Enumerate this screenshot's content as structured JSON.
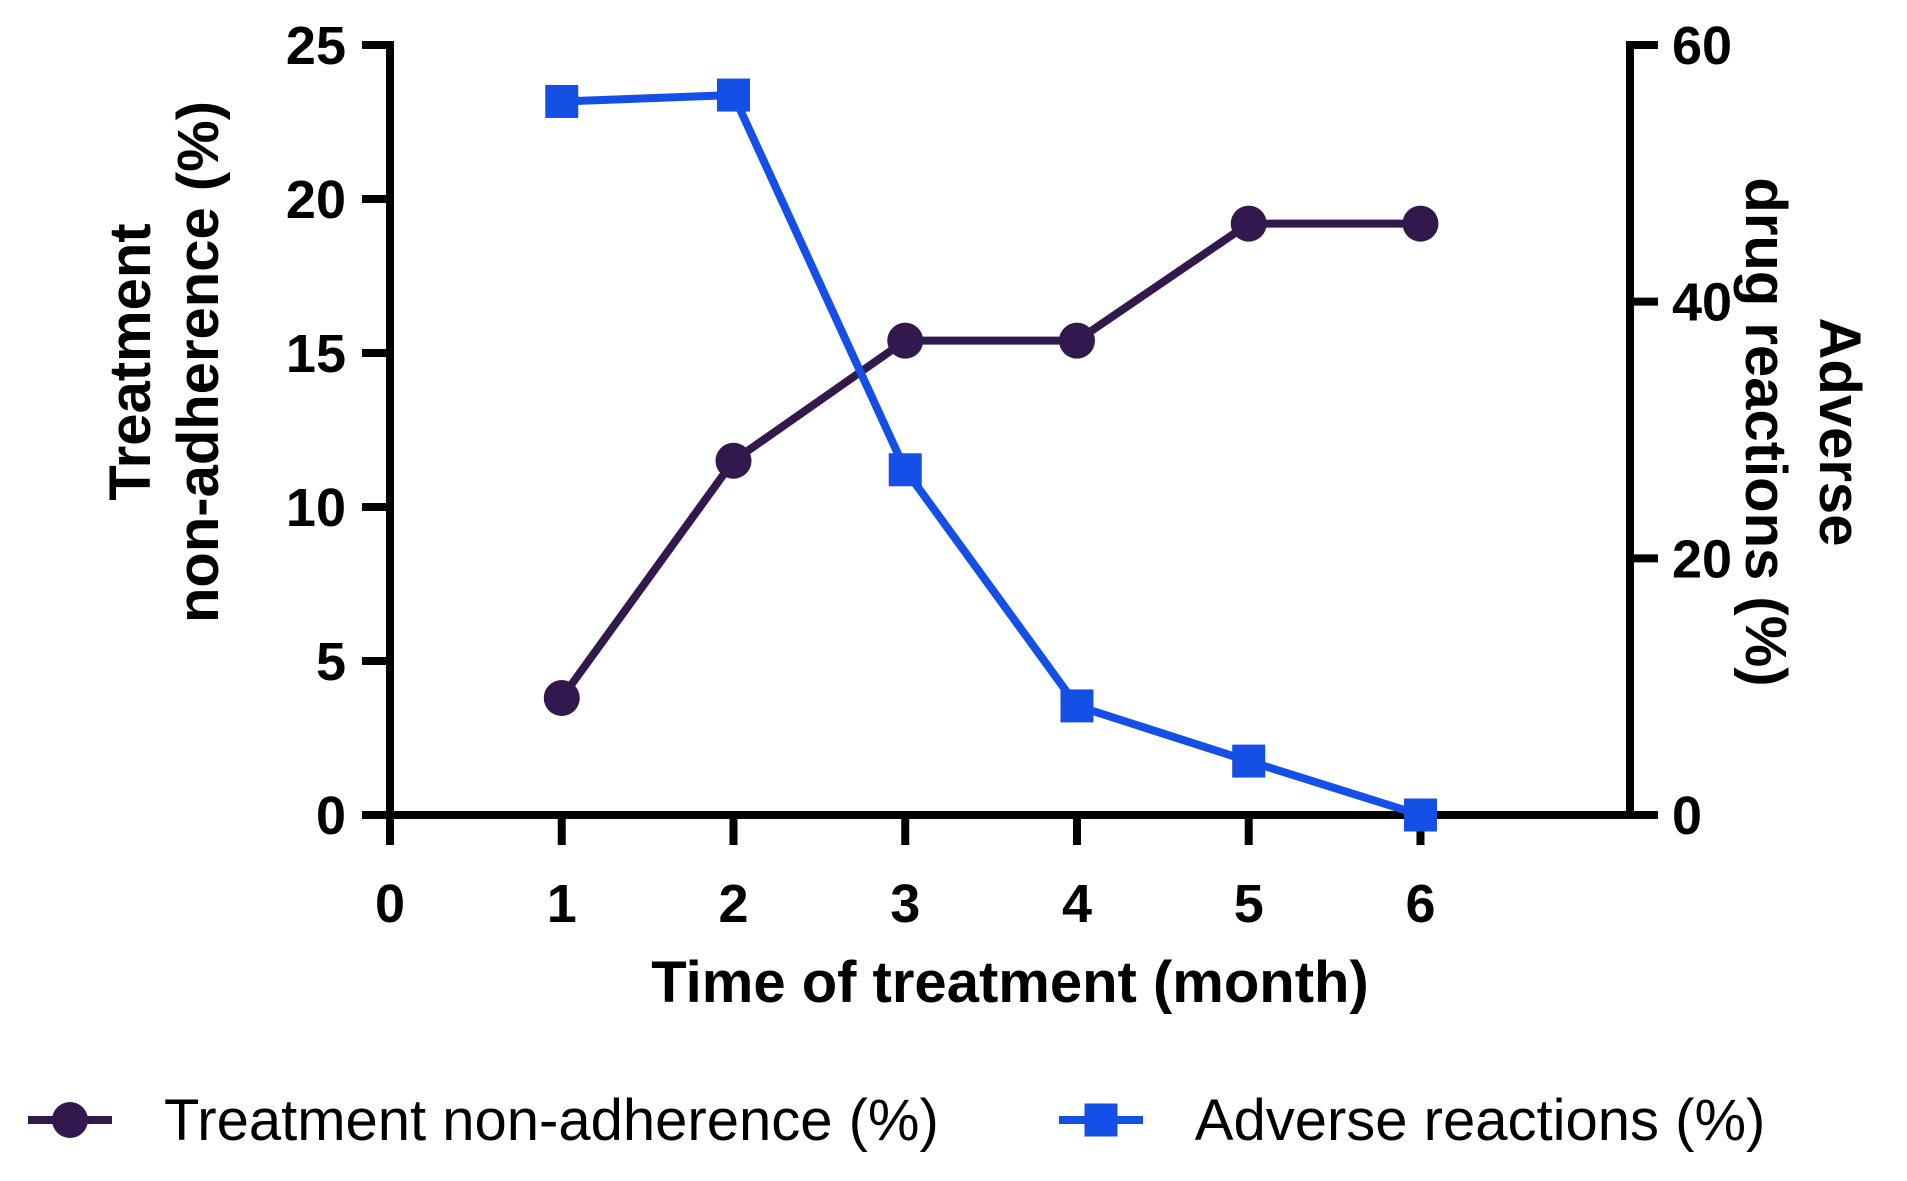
{
  "chart_data": {
    "type": "line",
    "title": "",
    "x_axis": {
      "label": "Time of treatment (month)",
      "ticks": [
        0,
        1,
        2,
        3,
        4,
        5,
        6
      ],
      "range": [
        0,
        7.22
      ],
      "grid": false
    },
    "left_axis": {
      "label_lines": [
        "Treatment",
        "non-adherence (%)"
      ],
      "ticks": [
        0,
        5,
        10,
        15,
        20,
        25
      ],
      "range": [
        0,
        25
      ]
    },
    "right_axis": {
      "label_lines": [
        "Adverse",
        "drug reactions (%)"
      ],
      "ticks": [
        0,
        20,
        40,
        60
      ],
      "range": [
        0,
        60
      ]
    },
    "x": [
      1,
      2,
      3,
      4,
      5,
      6
    ],
    "series": [
      {
        "name": "Treatment non-adherence (%)",
        "axis": "left",
        "marker": "circle",
        "color": "#31194d",
        "values": [
          3.8,
          11.5,
          15.4,
          15.4,
          19.2,
          19.2
        ]
      },
      {
        "name": "Adverse reactions (%)",
        "axis": "right",
        "marker": "square",
        "color": "#1450e5",
        "values": [
          55.6,
          56.1,
          26.9,
          8.5,
          4.2,
          0
        ]
      }
    ],
    "legend": {
      "position": "bottom",
      "items": [
        "Treatment non-adherence (%)",
        "Adverse reactions (%)"
      ]
    }
  }
}
